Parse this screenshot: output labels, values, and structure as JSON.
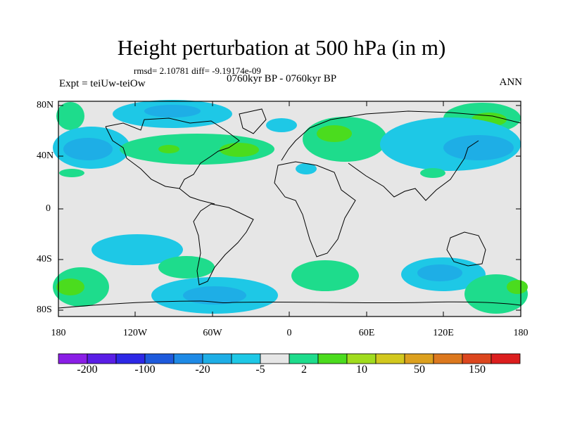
{
  "title": "Height perturbation at 500 hPa (in m)",
  "stats": "rmsd= 2.10781 diff= -9.19174e-09",
  "experiment": "Expt = teiUw-teiOw",
  "period": "0760kyr BP - 0760kyr BP",
  "season": "ANN",
  "lat_labels": [
    "80N",
    "40N",
    "0",
    "40S",
    "80S"
  ],
  "lon_labels": [
    "180",
    "120W",
    "60W",
    "0",
    "60E",
    "120E",
    "180"
  ],
  "colorbar": {
    "labels": [
      "-200",
      "-100",
      "-20",
      "-5",
      "2",
      "10",
      "50",
      "150"
    ],
    "colors": [
      "#8a1ee6",
      "#5a1ee6",
      "#2d28e6",
      "#1e5adc",
      "#1e8ae6",
      "#1eaee6",
      "#1ec8e6",
      "#e6e6e6",
      "#1edc8c",
      "#4bdc1e",
      "#a0dc1e",
      "#d2c81e",
      "#dca01e",
      "#dc781e",
      "#dc461e",
      "#dc1e1e"
    ]
  },
  "map": {
    "background": "#e6e6e6",
    "legend_levels": {
      "light_blue": "#1ec8e6",
      "mid_blue": "#1eaee6",
      "light_green": "#1edc8c",
      "mid_green": "#4bdc1e"
    }
  }
}
